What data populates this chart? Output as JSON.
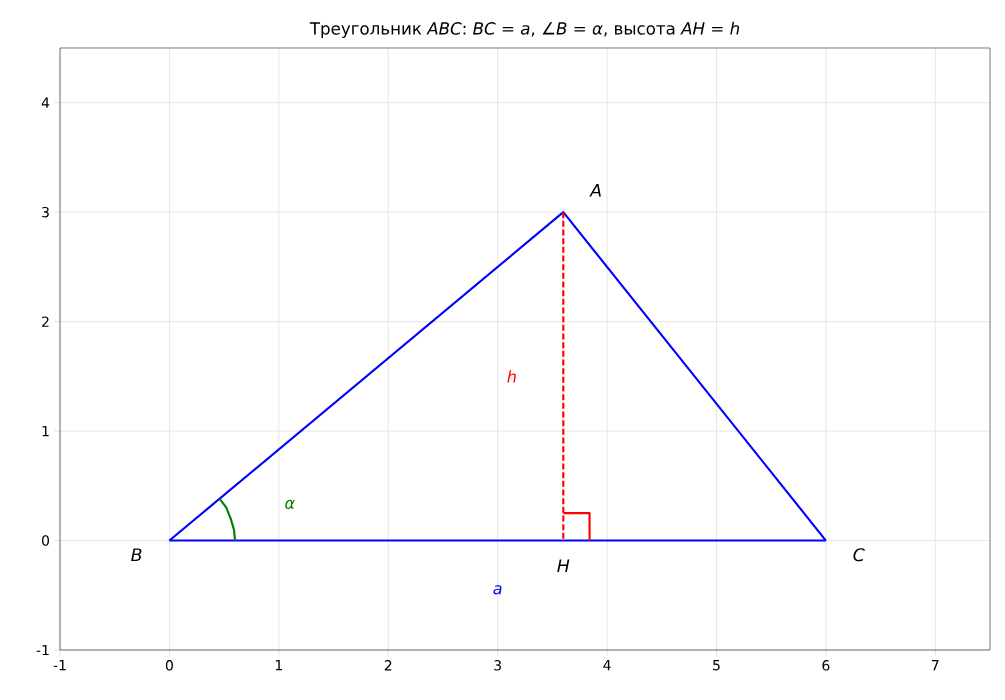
{
  "chart_data": {
    "type": "line",
    "title": "Треугольник *ABC*: *BC* = *a*, ∠*B* = *α*, высота *AH* = *h*",
    "xlim": [
      -1,
      7.5
    ],
    "ylim": [
      -1,
      4.5
    ],
    "xticks": [
      -1,
      0,
      1,
      2,
      3,
      4,
      5,
      6,
      7
    ],
    "yticks": [
      -1,
      0,
      1,
      2,
      3,
      4
    ],
    "grid": true,
    "series": [
      {
        "color": "#0000ff",
        "x": [
          0,
          3.6,
          6
        ],
        "values": [
          0,
          3,
          0
        ]
      },
      {
        "name": "a",
        "color": "#0000ff",
        "x": [
          0,
          6
        ],
        "values": [
          0,
          0
        ]
      },
      {
        "name": "h",
        "color": "#ff0000",
        "line_style": "dashed",
        "x": [
          3.6,
          3.6
        ],
        "values": [
          3,
          0
        ]
      },
      {
        "name": "α",
        "color": "#008000",
        "x": [
          0.6,
          0.59,
          0.56,
          0.52,
          0.46
        ],
        "values": [
          0,
          0.1,
          0.2,
          0.3,
          0.38
        ]
      },
      {
        "color": "#ff0000",
        "x": [
          3.6,
          3.84,
          3.84
        ],
        "values": [
          0.25,
          0.25,
          0
        ]
      }
    ],
    "annotations": [
      {
        "text": "A",
        "x": 3.6,
        "y": 3
      },
      {
        "text": "B",
        "x": 0,
        "y": 0
      },
      {
        "text": "C",
        "x": 6,
        "y": 0
      },
      {
        "text": "H",
        "x": 3.6,
        "y": 0
      }
    ]
  }
}
